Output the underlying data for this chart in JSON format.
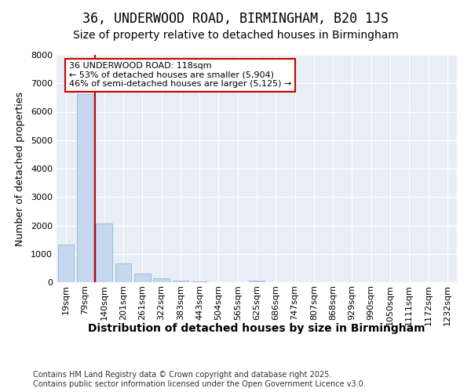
{
  "title": "36, UNDERWOOD ROAD, BIRMINGHAM, B20 1JS",
  "subtitle": "Size of property relative to detached houses in Birmingham",
  "xlabel": "Distribution of detached houses by size in Birmingham",
  "ylabel": "Number of detached properties",
  "categories": [
    "19sqm",
    "79sqm",
    "140sqm",
    "201sqm",
    "261sqm",
    "322sqm",
    "383sqm",
    "443sqm",
    "504sqm",
    "565sqm",
    "625sqm",
    "686sqm",
    "747sqm",
    "807sqm",
    "868sqm",
    "929sqm",
    "990sqm",
    "1050sqm",
    "1111sqm",
    "1172sqm",
    "1232sqm"
  ],
  "values": [
    1320,
    6620,
    2080,
    670,
    290,
    130,
    65,
    35,
    0,
    0,
    60,
    0,
    0,
    0,
    0,
    0,
    0,
    0,
    0,
    0,
    0
  ],
  "bar_color": "#c5d8ee",
  "bar_edge_color": "#a0bcd8",
  "vline_color": "#cc0000",
  "annotation_text": "36 UNDERWOOD ROAD: 118sqm\n← 53% of detached houses are smaller (5,904)\n46% of semi-detached houses are larger (5,125) →",
  "annotation_box_color": "#ffffff",
  "annotation_edge_color": "#cc0000",
  "ylim": [
    0,
    8000
  ],
  "yticks": [
    0,
    1000,
    2000,
    3000,
    4000,
    5000,
    6000,
    7000,
    8000
  ],
  "bg_color": "#e8eef5",
  "grid_color": "#ffffff",
  "footer": "Contains HM Land Registry data © Crown copyright and database right 2025.\nContains public sector information licensed under the Open Government Licence v3.0.",
  "title_fontsize": 12,
  "subtitle_fontsize": 10,
  "xlabel_fontsize": 10,
  "ylabel_fontsize": 9,
  "tick_fontsize": 8,
  "footer_fontsize": 7,
  "annot_fontsize": 8
}
